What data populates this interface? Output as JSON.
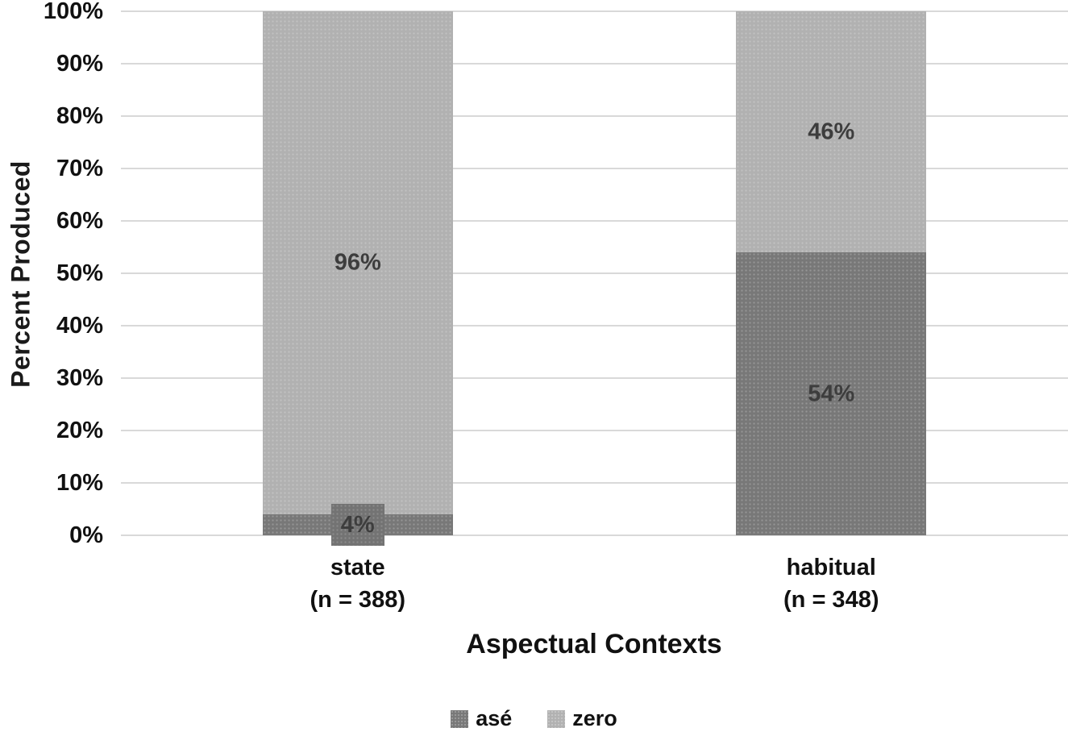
{
  "chart_data": {
    "type": "bar",
    "stacked": true,
    "title": "",
    "xlabel": "Aspectual Contexts",
    "ylabel": "Percent Produced",
    "ylim": [
      0,
      100
    ],
    "ytick_step": 10,
    "ytick_labels": [
      "0%",
      "10%",
      "20%",
      "30%",
      "40%",
      "50%",
      "60%",
      "70%",
      "80%",
      "90%",
      "100%"
    ],
    "grid": true,
    "legend_position": "bottom",
    "categories": [
      {
        "label": "state",
        "sublabel": "(n = 388)"
      },
      {
        "label": "habitual",
        "sublabel": "(n = 348)"
      }
    ],
    "series": [
      {
        "name": "asé",
        "color": "#787878",
        "values": [
          4,
          54
        ],
        "labels": [
          "4%",
          "54%"
        ]
      },
      {
        "name": "zero",
        "color": "#b1b1b1",
        "values": [
          96,
          46
        ],
        "labels": [
          "96%",
          "46%"
        ]
      }
    ]
  },
  "colors": {
    "grid": "#d9d9d9",
    "label_text": "#3d3d3d",
    "axis_text": "#111111",
    "background": "#ffffff",
    "boxed_label_bg": "#737373"
  }
}
